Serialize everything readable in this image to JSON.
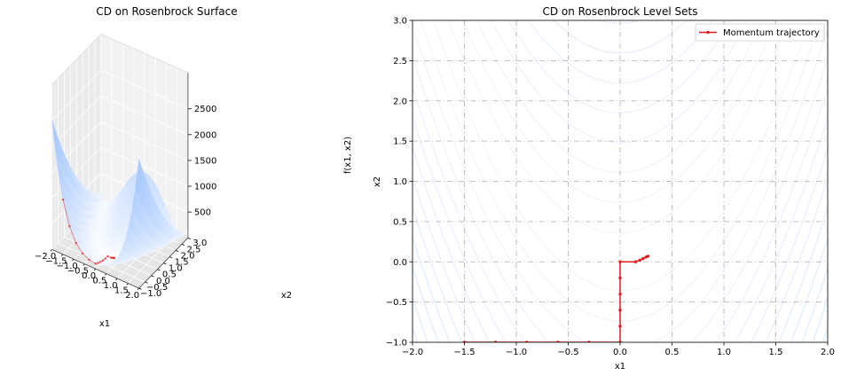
{
  "charts": [
    {
      "type": "surface3d",
      "title": "CD on Rosenbrock Surface",
      "xlabel": "x1",
      "ylabel": "x2",
      "zlabel": "f(x1, x2)",
      "xticks": [
        "−2.0",
        "−1.5",
        "−1.0",
        "−0.5",
        "0.0",
        "0.5",
        "1.0",
        "1.5",
        "2.0"
      ],
      "yticks": [
        "−1.0",
        "−0.5",
        "0.0",
        "0.5",
        "1.0",
        "1.5",
        "2.0",
        "2.5",
        "3.0"
      ],
      "zticks": [
        "500",
        "1000",
        "1500",
        "2000",
        "2500"
      ],
      "surface_color": "#c9dcfb"
    },
    {
      "type": "contour",
      "title": "CD on Rosenbrock Level Sets",
      "xlabel": "x1",
      "ylabel": "x2",
      "xticks": [
        "−2.0",
        "−1.5",
        "−1.0",
        "−0.5",
        "0.0",
        "0.5",
        "1.0",
        "1.5",
        "2.0"
      ],
      "yticks": [
        "−1.0",
        "−0.5",
        "0.0",
        "0.5",
        "1.0",
        "1.5",
        "2.0",
        "2.5",
        "3.0"
      ],
      "legend": "Momentum trajectory",
      "legend_position": "top-right",
      "grid": true,
      "line_color": "#e31a1c",
      "contour_color": "#8fb6ee"
    }
  ],
  "chart_data": {
    "type": "line",
    "function": "rosenbrock",
    "xlim": [
      -2.0,
      2.0
    ],
    "ylim": [
      -1.0,
      3.0
    ],
    "zlim": [
      0,
      2500
    ],
    "series": [
      {
        "name": "Momentum trajectory",
        "x": [
          -1.5,
          -1.2,
          -0.9,
          -0.6,
          -0.3,
          0.0,
          0.0,
          0.0,
          0.0,
          0.0,
          0.0,
          0.15,
          0.19,
          0.22,
          0.25,
          0.27
        ],
        "y": [
          -1.0,
          -1.0,
          -1.0,
          -1.0,
          -1.0,
          -1.0,
          -0.8,
          -0.6,
          -0.4,
          -0.2,
          0.0,
          0.0,
          0.02,
          0.04,
          0.06,
          0.07
        ]
      }
    ]
  }
}
